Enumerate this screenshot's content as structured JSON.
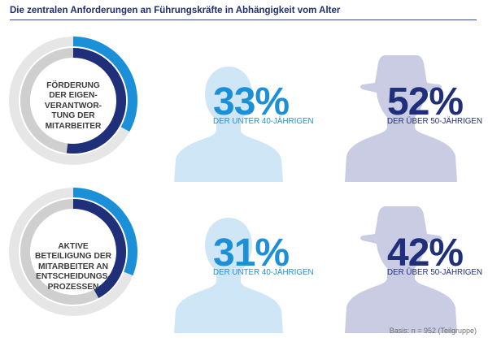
{
  "title": "Die zentralen Anforderungen an Führungskräfte in Abhängigkeit vom Alter",
  "basis": "Basis: n = 952 (Teilgruppe)",
  "colors": {
    "young": "#1b8fd8",
    "old": "#1f2f7a",
    "silhouette_young": "#cfe6f6",
    "silhouette_old": "#c9cce2",
    "ring_track": "#e6e6e6",
    "ring_inner": "#cfcfcf"
  },
  "icons": {
    "young": "person-silhouette-icon",
    "old": "person-with-hat-silhouette-icon"
  },
  "chart_data": {
    "type": "donut",
    "title": "Die zentralen Anforderungen an Führungskräfte in Abhängigkeit vom Alter",
    "unit": "%",
    "series": [
      {
        "name": "DER UNTER 40-JÄHRIGEN"
      },
      {
        "name": "DER ÜBER 50-JÄHRIGEN"
      }
    ],
    "items": [
      {
        "label": "Förderung der Eigen-verantwor-tung der Mitarbeiter",
        "values": [
          33,
          52
        ],
        "display": [
          "33%",
          "52%"
        ]
      },
      {
        "label": "Aktive Beteiligung der Mitarbeiter an Entscheidungs-prozessen",
        "values": [
          31,
          42
        ],
        "display": [
          "31%",
          "42%"
        ]
      }
    ]
  }
}
